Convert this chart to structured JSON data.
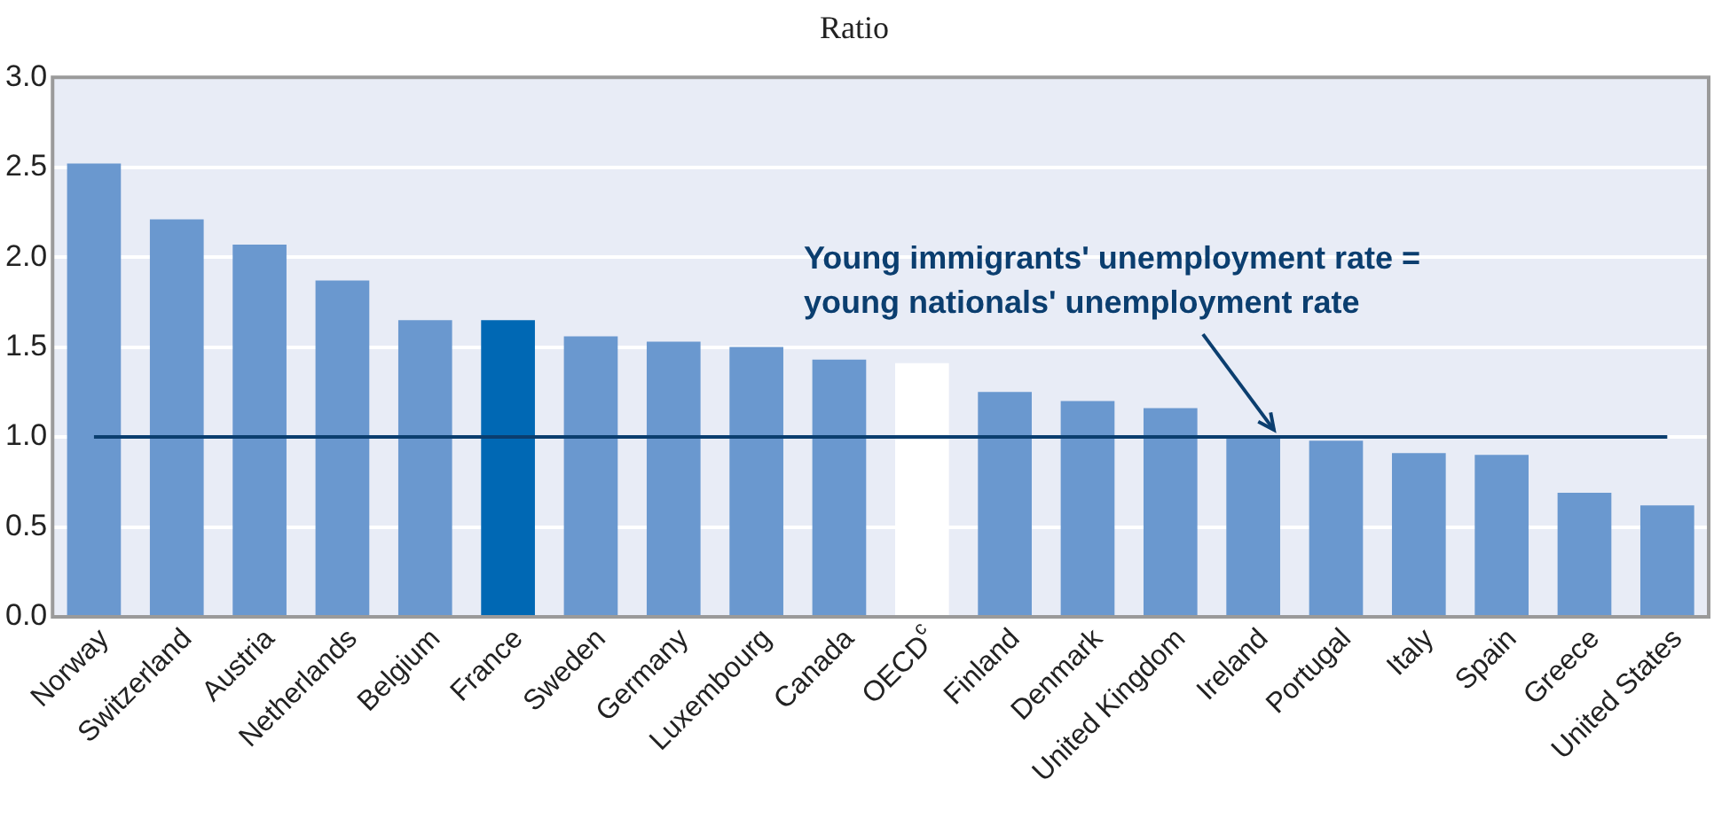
{
  "chart_data": {
    "type": "bar",
    "title": "Ratio",
    "categories": [
      "Norway",
      "Switzerland",
      "Austria",
      "Netherlands",
      "Belgium",
      "France",
      "Sweden",
      "Germany",
      "Luxembourg",
      "Canada",
      "OECD$^{c}$",
      "Finland",
      "Denmark",
      "United Kingdom",
      "Ireland",
      "Portugal",
      "Italy",
      "Spain",
      "Greece",
      "United States"
    ],
    "values": [
      2.52,
      2.21,
      2.07,
      1.87,
      1.65,
      1.65,
      1.56,
      1.53,
      1.5,
      1.43,
      1.41,
      1.25,
      1.2,
      1.16,
      0.99,
      0.98,
      0.91,
      0.9,
      0.69,
      0.62
    ],
    "colors": [
      "#6a98cf",
      "#6a98cf",
      "#6a98cf",
      "#6a98cf",
      "#6a98cf",
      "#0068b4",
      "#6a98cf",
      "#6a98cf",
      "#6a98cf",
      "#6a98cf",
      "#ffffff",
      "#6a98cf",
      "#6a98cf",
      "#6a98cf",
      "#6a98cf",
      "#6a98cf",
      "#6a98cf",
      "#6a98cf",
      "#6a98cf",
      "#6a98cf"
    ],
    "ylim": [
      0,
      3
    ],
    "yticks": [
      {
        "value": 0,
        "label": "0.0"
      },
      0.5,
      {
        "value": 1,
        "label": "1.0"
      },
      1.5,
      {
        "value": 2,
        "label": "2.0"
      },
      2.5,
      {
        "value": 3,
        "label": "3.0"
      }
    ],
    "grid": "y",
    "ref_lines": [
      {
        "axis": "y",
        "value": 1,
        "label": "Young immigrants' unemployment rate = young nationals' unemployment rate",
        "color": "#0b3e6f"
      }
    ]
  }
}
